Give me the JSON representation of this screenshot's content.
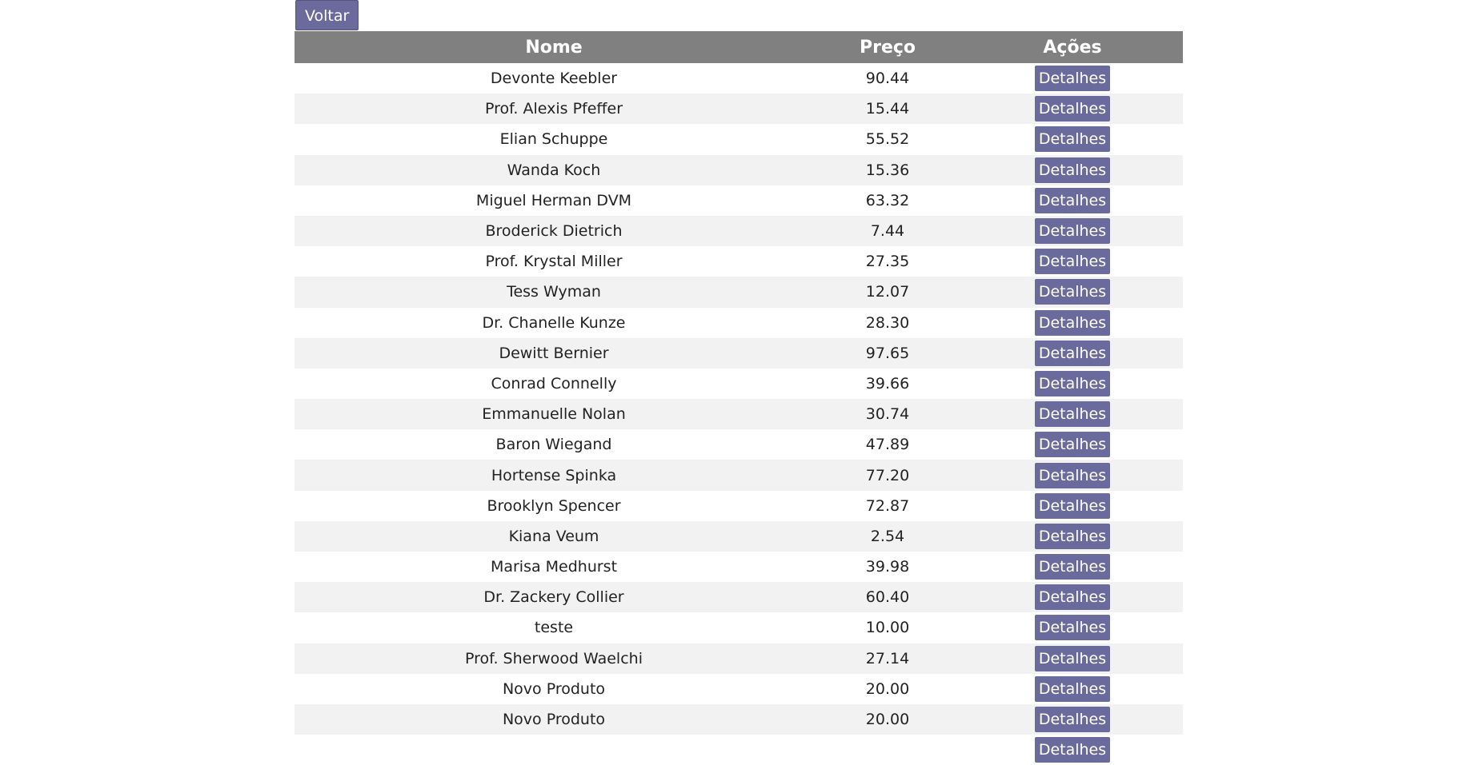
{
  "back_label": "Voltar",
  "table": {
    "headers": {
      "name": "Nome",
      "price": "Preço",
      "actions": "Ações"
    },
    "details_label": "Detalhes",
    "rows": [
      {
        "name": "Devonte Keebler",
        "price": "90.44"
      },
      {
        "name": "Prof. Alexis Pfeffer",
        "price": "15.44"
      },
      {
        "name": "Elian Schuppe",
        "price": "55.52"
      },
      {
        "name": "Wanda Koch",
        "price": "15.36"
      },
      {
        "name": "Miguel Herman DVM",
        "price": "63.32"
      },
      {
        "name": "Broderick Dietrich",
        "price": "7.44"
      },
      {
        "name": "Prof. Krystal Miller",
        "price": "27.35"
      },
      {
        "name": "Tess Wyman",
        "price": "12.07"
      },
      {
        "name": "Dr. Chanelle Kunze",
        "price": "28.30"
      },
      {
        "name": "Dewitt Bernier",
        "price": "97.65"
      },
      {
        "name": "Conrad Connelly",
        "price": "39.66"
      },
      {
        "name": "Emmanuelle Nolan",
        "price": "30.74"
      },
      {
        "name": "Baron Wiegand",
        "price": "47.89"
      },
      {
        "name": "Hortense Spinka",
        "price": "77.20"
      },
      {
        "name": "Brooklyn Spencer",
        "price": "72.87"
      },
      {
        "name": "Kiana Veum",
        "price": "2.54"
      },
      {
        "name": "Marisa Medhurst",
        "price": "39.98"
      },
      {
        "name": "Dr. Zackery Collier",
        "price": "60.40"
      },
      {
        "name": "teste",
        "price": "10.00"
      },
      {
        "name": "Prof. Sherwood Waelchi",
        "price": "27.14"
      },
      {
        "name": "Novo Produto",
        "price": "20.00"
      },
      {
        "name": "Novo Produto",
        "price": "20.00"
      },
      {
        "name": "",
        "price": ""
      }
    ]
  },
  "colors": {
    "accent": "#6b6a9c",
    "header_bg": "#808080",
    "stripe": "#f2f2f2"
  }
}
